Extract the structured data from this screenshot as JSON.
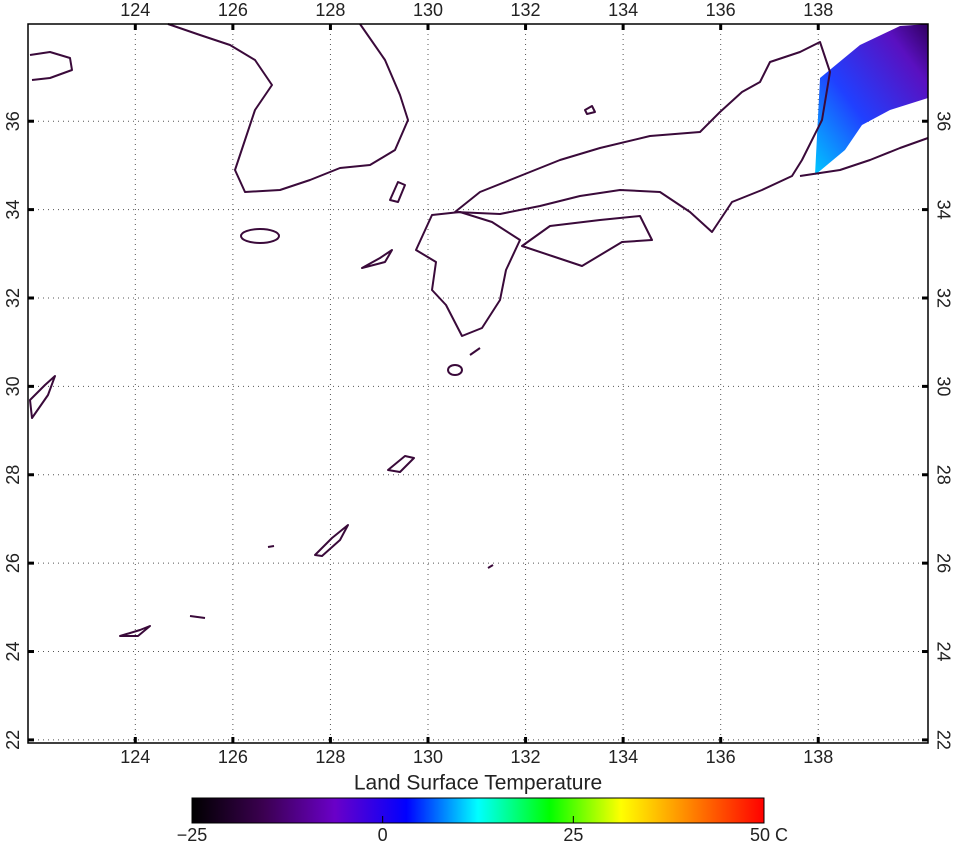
{
  "map": {
    "title": "Land Surface Temperature",
    "lonlim": [
      121.8,
      140.25
    ],
    "latlim": [
      21.93,
      38.2
    ],
    "lon_ticks": [
      124,
      126,
      128,
      130,
      132,
      134,
      136,
      138
    ],
    "lat_ticks": [
      22,
      24,
      26,
      28,
      30,
      32,
      34,
      36
    ],
    "grid": true,
    "colorbar": {
      "lim": [
        -25,
        50
      ],
      "ticks": [
        {
          "value": -25,
          "label": "−25"
        },
        0,
        25,
        {
          "value": 50,
          "label": "50 C"
        }
      ],
      "colors": [
        "#000000",
        "#3b0050",
        "#6a00c8",
        "#0000ff",
        "#00ffff",
        "#00ff00",
        "#ffff00",
        "#ff8000",
        "#ff0000"
      ]
    }
  }
}
